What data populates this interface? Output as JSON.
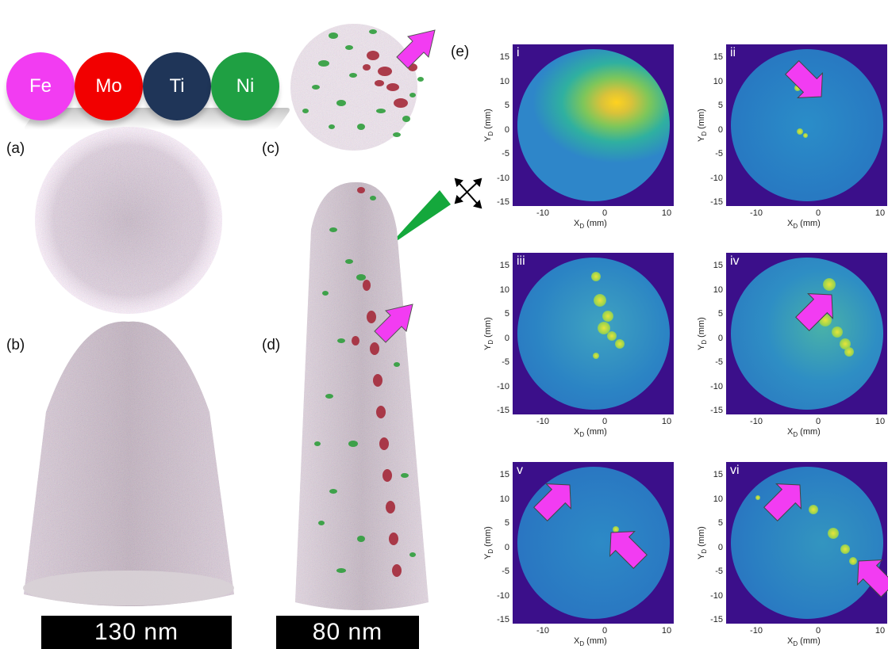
{
  "elements": [
    {
      "symbol": "Fe",
      "color": "#f23cf2"
    },
    {
      "symbol": "Mo",
      "color": "#f20000"
    },
    {
      "symbol": "Ti",
      "color": "#1f3558"
    },
    {
      "symbol": "Ni",
      "color": "#1fa043"
    }
  ],
  "panel_labels": {
    "a": "(a)",
    "b": "(b)",
    "c": "(c)",
    "d": "(d)",
    "e": "(e)"
  },
  "scale_bars": {
    "left": "130 nm",
    "right": "80 nm"
  },
  "detector_maps": [
    {
      "id": "i",
      "label": "i"
    },
    {
      "id": "ii",
      "label": "ii"
    },
    {
      "id": "iii",
      "label": "iii"
    },
    {
      "id": "iv",
      "label": "iv"
    },
    {
      "id": "v",
      "label": "v"
    },
    {
      "id": "vi",
      "label": "vi"
    }
  ],
  "axes": {
    "y_ticks": [
      "15",
      "10",
      "5",
      "0",
      "-5",
      "-10",
      "-15"
    ],
    "x_ticks": [
      "-10",
      "0",
      "10"
    ],
    "x_label_main": "X",
    "x_label_sub": "D",
    "x_label_unit": " (mm)",
    "y_label_main": "Y",
    "y_label_sub": "D",
    "y_label_unit": " (mm)"
  },
  "colors": {
    "arrow": "#f23cf2",
    "map_background": "#3b0f8a",
    "probe_cone": "#14a83c"
  }
}
